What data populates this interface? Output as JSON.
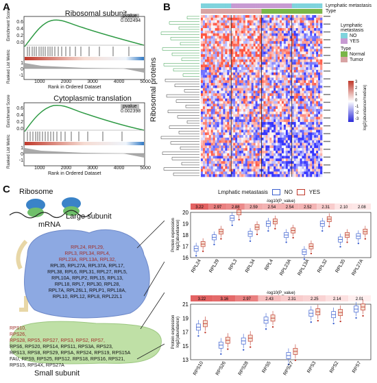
{
  "panels": {
    "a": "A",
    "b": "B",
    "c": "C"
  },
  "gsea": [
    {
      "title": "Ribosomal subunit",
      "pvalue_label": "pvalue",
      "pvalue": "0.002494",
      "ylabel_top": "Enrichment Score",
      "ylabel_bottom": "Ranked List Metric",
      "y_ticks_top": [
        "0.6",
        "0.4",
        "0.2",
        "0.0"
      ],
      "y_ticks_bottom": [
        "1",
        "0",
        "-1"
      ],
      "x_ticks": [
        "1000",
        "2000",
        "3000",
        "4000",
        "5000"
      ],
      "xlabel": "Rank in Ordered Dataset"
    },
    {
      "title": "Cytoplasmic translation",
      "pvalue_label": "pvalue",
      "pvalue": "0.002398",
      "ylabel_top": "Enrichment Score",
      "ylabel_bottom": "Ranked List Metric",
      "y_ticks_top": [
        "0.6",
        "0.4",
        "0.2",
        "0.0"
      ],
      "y_ticks_bottom": [
        "1",
        "0",
        "-1"
      ],
      "x_ticks": [
        "1000",
        "2000",
        "3000",
        "4000",
        "5000"
      ],
      "xlabel": "Rank in Ordered Dataset"
    }
  ],
  "heatmap": {
    "track1": "Lymphatic metastasis",
    "track2": "Type",
    "row_label": "Ribosomal proteins",
    "legend_lm_title": "Lymphatic metastasis",
    "legend_lm": [
      "NO",
      "YES"
    ],
    "legend_type_title": "Type",
    "legend_type": [
      "Normal",
      "Tumor"
    ],
    "scale_title": "log2(abundance/median)",
    "scale_ticks": [
      "3",
      "2",
      "1",
      "0",
      "-1",
      "-2",
      "-3"
    ],
    "colors": {
      "no": "#7fd3dd",
      "yes": "#c79ad2",
      "normal": "#7ab648",
      "tumor": "#d8a3a3",
      "high": "#c0392b",
      "low": "#2a2ad8"
    }
  },
  "diagram": {
    "ribosome": "Ribosome",
    "mrna": "mRNA",
    "large": "Large subunit",
    "small": "Small subunit",
    "large_lines": [
      {
        "t": "RPL24, RPL29,",
        "c": "red"
      },
      {
        "t": "RPL3, RPL34, RPL4,",
        "c": "red"
      },
      {
        "t": "RPL23A, RPL13A, RPL32,",
        "c": "red"
      },
      {
        "t": "RPL35, RPL27A, RPL37A, RPL17,",
        "c": "mix"
      },
      {
        "t": "RPL38, RPL6, RPL31, RPL27, RPL5,",
        "c": "black"
      },
      {
        "t": "RPL10A, RPLP2, RPL15, RPL13,",
        "c": "black"
      },
      {
        "t": "RPL18, RPL7, RPL30, RPL28,",
        "c": "black"
      },
      {
        "t": "RPL7A, RPL26L1, RPLP1, RPL18A,",
        "c": "black"
      },
      {
        "t": "RPL10, RPL12, RPL8, RPL22L1",
        "c": "black"
      }
    ],
    "small_lines": [
      {
        "t": "RPS10,",
        "c": "red"
      },
      {
        "t": "RPS26,",
        "c": "red"
      },
      {
        "t": "RPS28, RPS5, RPS27, RPS3, RPS2, RPS7,",
        "c": "red"
      },
      {
        "t": "RPS6, RPS20, RPS14, RPS11, RPS3A, RPS23,",
        "c": "black"
      },
      {
        "t": "RPS13, RPS8, RPS29, RPSA, RPS24, RPS19, RPS15A",
        "c": "black"
      },
      {
        "t": "FAU, RPS9, RPS25, RPS12, RPS18, RPS16, RPS21,",
        "c": "black"
      },
      {
        "t": "RPS15, RPS4X, RPS27A",
        "c": "black"
      }
    ]
  },
  "box_legend": {
    "title": "Lmphatic metastasis",
    "no": "NO",
    "yes": "YES"
  },
  "chart_data": [
    {
      "type": "box",
      "title": "-log10(P_value)",
      "ylabel": "Protein expression log2(abundance)",
      "categories": [
        "RPL24",
        "RPL29",
        "RPL3",
        "RPL34",
        "RPL4",
        "RPL23A",
        "RPL13A",
        "RPL32",
        "RPL35",
        "RPL27A"
      ],
      "pvals": [
        "3.22",
        "2.97",
        "2.88",
        "2.59",
        "2.54",
        "2.54",
        "2.52",
        "2.31",
        "2.10",
        "2.08"
      ],
      "ylim": [
        16,
        20
      ],
      "yticks": [
        "16",
        "17",
        "18",
        "19",
        "20"
      ],
      "no_median": [
        16.8,
        17.8,
        19.5,
        18.1,
        19.0,
        18.0,
        16.5,
        19.0,
        17.6,
        17.9
      ],
      "yes_median": [
        17.2,
        18.3,
        20.0,
        18.7,
        19.2,
        18.4,
        17.0,
        19.4,
        18.0,
        18.3
      ]
    },
    {
      "type": "box",
      "title": "-log10(P_value)",
      "ylabel": "Protein expression log2(abundance)",
      "categories": [
        "RPS10",
        "RPS26",
        "RPS28",
        "RPS5",
        "RPS27",
        "RPS3",
        "RPS2",
        "RPS7"
      ],
      "pvals": [
        "3.22",
        "3.16",
        "2.97",
        "2.43",
        "2.31",
        "2.25",
        "2.14",
        "2.01"
      ],
      "ylim": [
        13,
        21
      ],
      "yticks": [
        "13",
        "15",
        "17",
        "19",
        "21"
      ],
      "no_median": [
        17.7,
        15.1,
        15.7,
        18.7,
        13.6,
        19.7,
        19.5,
        20.3
      ],
      "yes_median": [
        18.2,
        15.8,
        16.1,
        19.0,
        14.2,
        19.9,
        19.8,
        20.6
      ]
    }
  ]
}
